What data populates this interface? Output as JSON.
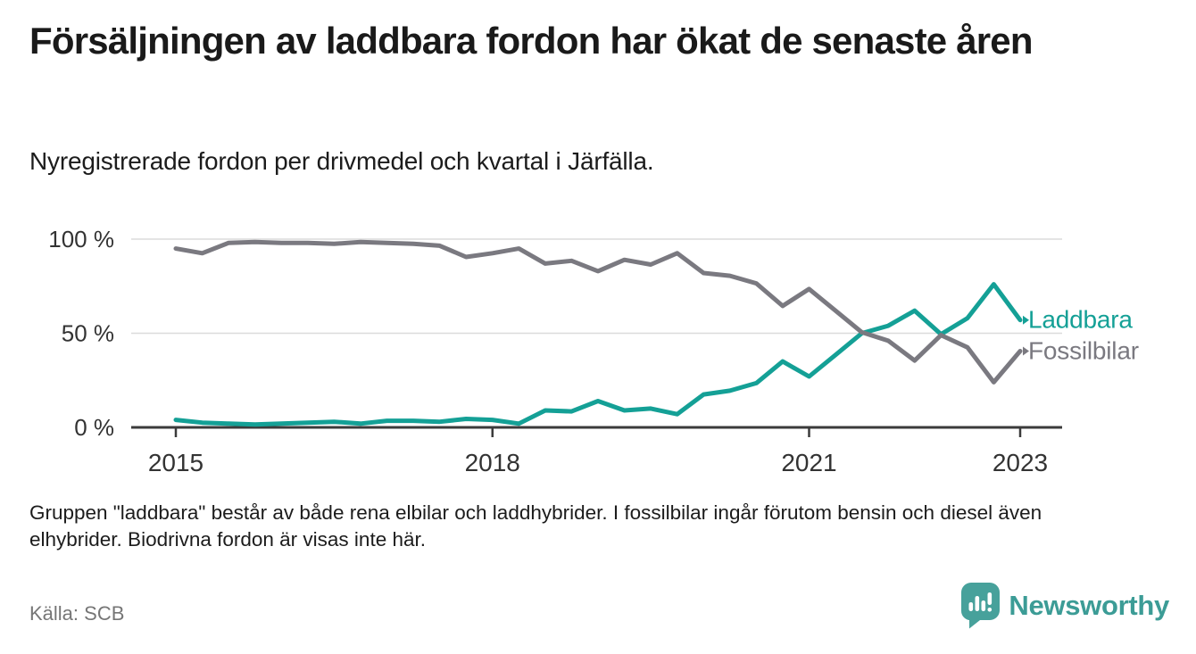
{
  "header": {
    "title": "Försäljningen av laddbara fordon har ökat de senaste åren",
    "subtitle": "Nyregistrerade fordon per drivmedel och kvartal i Järfälla."
  },
  "chart_data": {
    "type": "line",
    "x_unit": "quarter",
    "categories": [
      "2015 Q1",
      "2015 Q2",
      "2015 Q3",
      "2015 Q4",
      "2016 Q1",
      "2016 Q2",
      "2016 Q3",
      "2016 Q4",
      "2017 Q1",
      "2017 Q2",
      "2017 Q3",
      "2017 Q4",
      "2018 Q1",
      "2018 Q2",
      "2018 Q3",
      "2018 Q4",
      "2019 Q1",
      "2019 Q2",
      "2019 Q3",
      "2019 Q4",
      "2020 Q1",
      "2020 Q2",
      "2020 Q3",
      "2020 Q4",
      "2021 Q1",
      "2021 Q2",
      "2021 Q3",
      "2021 Q4",
      "2022 Q1",
      "2022 Q2",
      "2022 Q3",
      "2022 Q4",
      "2023 Q1"
    ],
    "series": [
      {
        "name": "Laddbara",
        "color": "#14a096",
        "values": [
          4,
          2.5,
          2,
          1.5,
          2,
          2.5,
          3,
          2,
          3.5,
          3.5,
          3,
          4.5,
          4,
          2,
          9,
          8.5,
          14,
          9,
          10,
          7,
          17.5,
          19.5,
          23.5,
          35,
          27,
          38.5,
          50,
          54,
          62,
          49.5,
          58,
          76,
          57
        ]
      },
      {
        "name": "Fossilbilar",
        "color": "#7a7980",
        "values": [
          95,
          92.5,
          98,
          98.5,
          98,
          98,
          97.5,
          98.5,
          98,
          97.5,
          96.5,
          90.5,
          92.5,
          95,
          87,
          88.5,
          83,
          89,
          86.5,
          92.5,
          82,
          80.5,
          76.5,
          64.5,
          73.5,
          62,
          50.5,
          46,
          35.5,
          49,
          42.5,
          24,
          40.5
        ]
      }
    ],
    "unit": "%",
    "ylim": [
      0,
      100
    ],
    "yticks": [
      {
        "value": 100,
        "label": "100 %"
      },
      {
        "value": 50,
        "label": "50 %"
      },
      {
        "value": 0,
        "label": "0 %"
      }
    ],
    "xticks": [
      {
        "index": 0,
        "label": "2015"
      },
      {
        "index": 12,
        "label": "2018"
      },
      {
        "index": 24,
        "label": "2021"
      },
      {
        "index": 32,
        "label": "2023"
      }
    ],
    "grid": "horizontal",
    "legend_position": "right-of-line-ends"
  },
  "footer": {
    "note_line1": "Gruppen \"laddbara\" består av både rena elbilar och laddhybrider. I fossilbilar ingår förutom bensin och diesel även",
    "note_line2": "elhybrider. Biodrivna fordon är visas inte här.",
    "source": "Källa: SCB",
    "brand": "Newsworthy"
  }
}
